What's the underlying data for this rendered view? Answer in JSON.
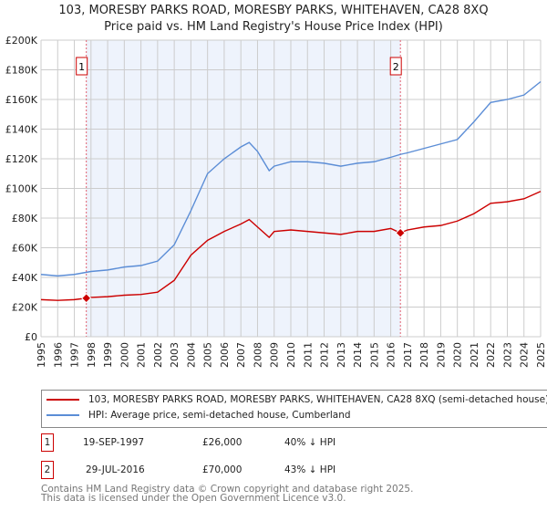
{
  "chart_data": {
    "type": "line",
    "title": "103, MORESBY PARKS ROAD, MORESBY PARKS, WHITEHAVEN, CA28 8XQ",
    "subtitle": "Price paid vs. HM Land Registry's House Price Index (HPI)",
    "xlim": [
      1995,
      2025
    ],
    "ylim": [
      0,
      200000
    ],
    "grid": true,
    "x_ticks": [
      "1995",
      "1996",
      "1997",
      "1998",
      "1999",
      "2000",
      "2001",
      "2002",
      "2003",
      "2004",
      "2005",
      "2006",
      "2007",
      "2008",
      "2009",
      "2010",
      "2011",
      "2012",
      "2013",
      "2014",
      "2015",
      "2016",
      "2017",
      "2018",
      "2019",
      "2020",
      "2021",
      "2022",
      "2023",
      "2024",
      "2025"
    ],
    "y_ticks": [
      {
        "v": 0,
        "label": "£0"
      },
      {
        "v": 20000,
        "label": "£20K"
      },
      {
        "v": 40000,
        "label": "£40K"
      },
      {
        "v": 60000,
        "label": "£60K"
      },
      {
        "v": 80000,
        "label": "£80K"
      },
      {
        "v": 100000,
        "label": "£100K"
      },
      {
        "v": 120000,
        "label": "£120K"
      },
      {
        "v": 140000,
        "label": "£140K"
      },
      {
        "v": 160000,
        "label": "£160K"
      },
      {
        "v": 180000,
        "label": "£180K"
      },
      {
        "v": 200000,
        "label": "£200K"
      }
    ],
    "series": [
      {
        "name": "103, MORESBY PARKS ROAD, MORESBY PARKS, WHITEHAVEN, CA28 8XQ (semi-detached house)",
        "color": "#cc0000",
        "x": [
          1995,
          1996,
          1997,
          1997.72,
          1998,
          1999,
          2000,
          2001,
          2002,
          2003,
          2004,
          2005,
          2006,
          2007,
          2007.5,
          2008,
          2008.7,
          2009,
          2010,
          2011,
          2012,
          2013,
          2014,
          2015,
          2016,
          2016.58,
          2017,
          2018,
          2019,
          2020,
          2021,
          2022,
          2023,
          2024,
          2025
        ],
        "y": [
          25000,
          24500,
          25000,
          26000,
          26500,
          27000,
          28000,
          28500,
          30000,
          38000,
          55000,
          65000,
          71000,
          76000,
          79000,
          74000,
          67000,
          71000,
          72000,
          71000,
          70000,
          69000,
          71000,
          71000,
          73000,
          70000,
          72000,
          74000,
          75000,
          78000,
          83000,
          90000,
          91000,
          93000,
          98000
        ]
      },
      {
        "name": "HPI: Average price, semi-detached house, Cumberland",
        "color": "#5b8dd6",
        "x": [
          1995,
          1996,
          1997,
          1998,
          1999,
          2000,
          2001,
          2002,
          2003,
          2004,
          2005,
          2006,
          2007,
          2007.5,
          2008,
          2008.7,
          2009,
          2010,
          2011,
          2012,
          2013,
          2014,
          2015,
          2016,
          2016.6,
          2017,
          2018,
          2019,
          2020,
          2021,
          2022,
          2023,
          2024,
          2025
        ],
        "y": [
          42000,
          41000,
          42000,
          44000,
          45000,
          47000,
          48000,
          51000,
          62000,
          85000,
          110000,
          120000,
          128000,
          131000,
          125000,
          112000,
          115000,
          118000,
          118000,
          117000,
          115000,
          117000,
          118000,
          121000,
          123000,
          124000,
          127000,
          130000,
          133000,
          145000,
          158000,
          160000,
          163000,
          172000
        ]
      }
    ],
    "shaded_range": [
      1997.72,
      2016.58
    ],
    "annotations": [
      {
        "label": "1",
        "x": 1997.72,
        "y": 26000
      },
      {
        "label": "2",
        "x": 2016.58,
        "y": 70000
      }
    ]
  },
  "sales": [
    {
      "num": "1",
      "date": "19-SEP-1997",
      "price": "£26,000",
      "diff": "40% ↓ HPI"
    },
    {
      "num": "2",
      "date": "29-JUL-2016",
      "price": "£70,000",
      "diff": "43% ↓ HPI"
    }
  ],
  "footer": {
    "line1": "Contains HM Land Registry data © Crown copyright and database right 2025.",
    "line2": "This data is licensed under the Open Government Licence v3.0."
  }
}
